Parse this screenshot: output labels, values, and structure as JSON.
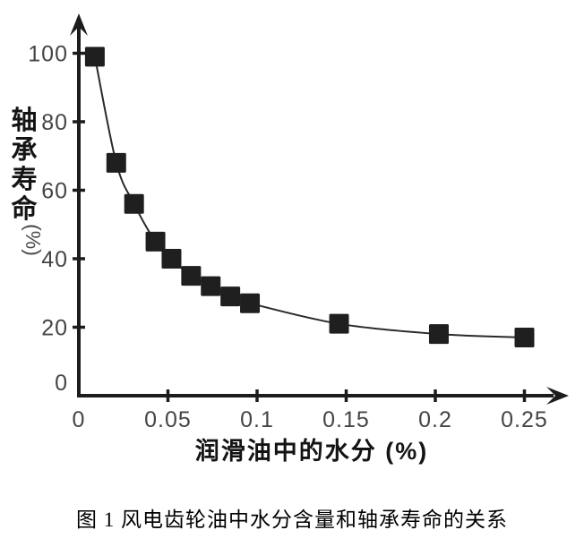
{
  "figure": {
    "caption": "图 1  风电齿轮油中水分含量和轴承寿命的关系"
  },
  "chart_data": {
    "type": "scatter",
    "title": "",
    "xlabel": "润滑油中的水分 (%)",
    "ylabel": "轴承寿命 (%)",
    "ylabel_main": "轴承寿命",
    "ylabel_unit": "(%)",
    "marker": "filled-square",
    "line": "smooth-curve-through-points",
    "grid": false,
    "legend": null,
    "xlim": [
      0,
      0.27
    ],
    "ylim": [
      0,
      110
    ],
    "x_tick_values": [
      0,
      0.05,
      0.1,
      0.15,
      0.2,
      0.25
    ],
    "x_tick_labels": [
      "0",
      "0.05",
      "0.1",
      "0.15",
      "0.2",
      "0.25"
    ],
    "y_tick_values": [
      0,
      20,
      40,
      60,
      80,
      100
    ],
    "y_tick_labels": [
      "0",
      "20",
      "40",
      "60",
      "80",
      "100"
    ],
    "points": [
      {
        "x": 0.009,
        "y": 99
      },
      {
        "x": 0.021,
        "y": 68
      },
      {
        "x": 0.031,
        "y": 56
      },
      {
        "x": 0.043,
        "y": 45
      },
      {
        "x": 0.052,
        "y": 40
      },
      {
        "x": 0.063,
        "y": 35
      },
      {
        "x": 0.074,
        "y": 32
      },
      {
        "x": 0.085,
        "y": 29
      },
      {
        "x": 0.096,
        "y": 27
      },
      {
        "x": 0.146,
        "y": 21
      },
      {
        "x": 0.202,
        "y": 18
      },
      {
        "x": 0.25,
        "y": 17
      }
    ],
    "colors": {
      "background": "#ffffff",
      "axis": "#1c1c1c",
      "curve": "#2a2a2a",
      "marker": "#1f1f1f",
      "tick_label": "#454545",
      "axis_label": "#141414",
      "unit_label": "#4a4a4a"
    }
  }
}
